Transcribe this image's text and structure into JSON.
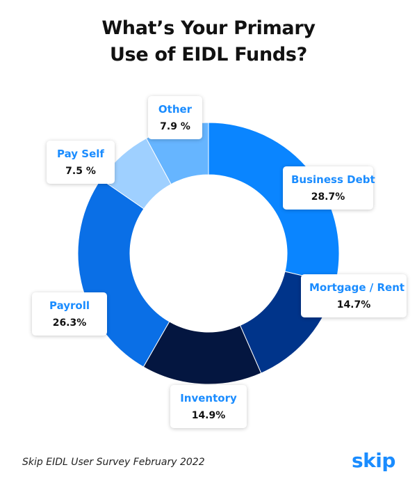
{
  "title": {
    "line1": "What’s Your Primary",
    "line2": "Use of EIDL Funds?"
  },
  "chart_data": {
    "type": "pie",
    "title": "What’s Your Primary Use of EIDL Funds?",
    "donut": true,
    "slices": [
      {
        "label": "Business Debt",
        "value_text": "28.7%",
        "value": 28.7,
        "color": "#0a85ff"
      },
      {
        "label": "Mortgage / Rent",
        "value_text": "14.7%",
        "value": 14.7,
        "color": "#00348a"
      },
      {
        "label": "Inventory",
        "value_text": "14.9%",
        "value": 14.9,
        "color": "#041640"
      },
      {
        "label": "Payroll",
        "value_text": "26.3%",
        "value": 26.3,
        "color": "#0a6fe6"
      },
      {
        "label": "Pay Self",
        "value_text": "7.5 %",
        "value": 7.5,
        "color": "#9fd0ff"
      },
      {
        "label": "Other",
        "value_text": "7.9 %",
        "value": 7.9,
        "color": "#66b5ff"
      }
    ]
  },
  "source": "Skip EIDL User Survey February 2022",
  "brand": "skip",
  "colors": {
    "accent": "#1a8cff",
    "text": "#111111"
  }
}
